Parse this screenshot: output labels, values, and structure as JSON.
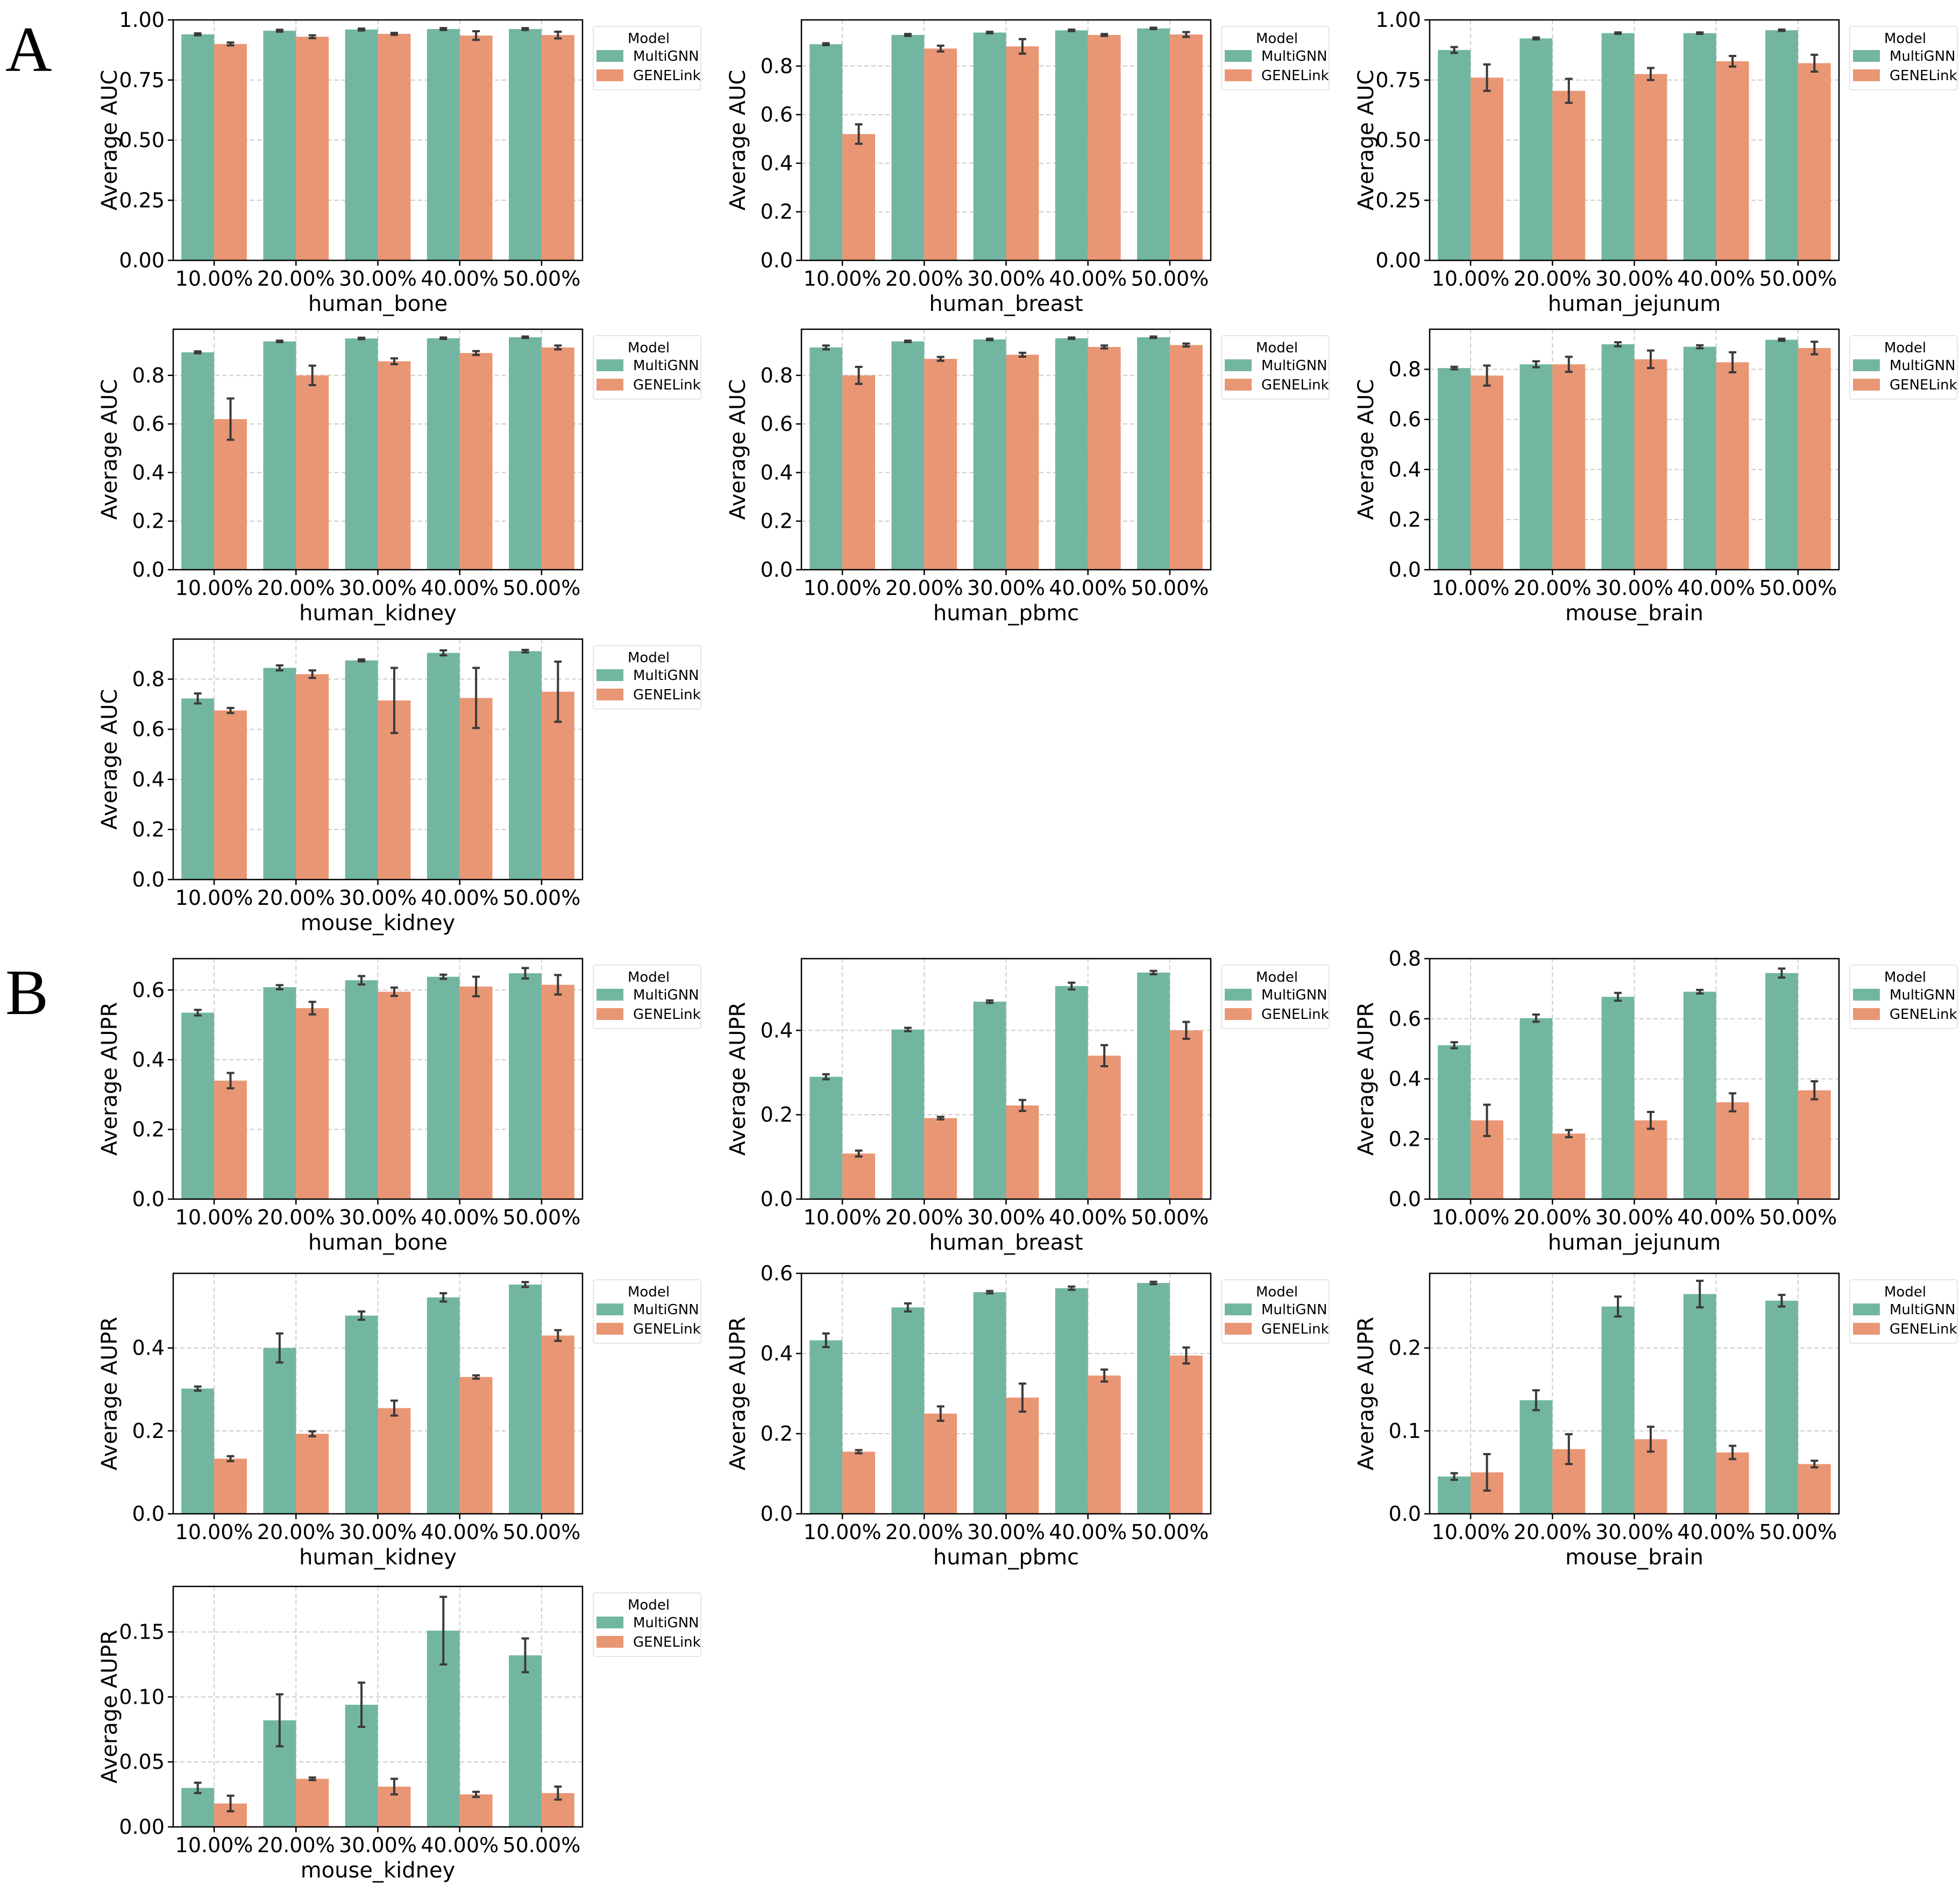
{
  "figure": {
    "panel_labels": [
      "A",
      "B"
    ]
  },
  "colors": {
    "MultiGNN": "#72b6a1",
    "GENELink": "#e99675",
    "errorbar": "#3a3a3a",
    "grid": "#cccccc",
    "axis": "#000000",
    "legend_border": "#e6e6e6"
  },
  "chart_data": [
    {
      "id": "A1",
      "type": "bar",
      "xlabel": "human_bone",
      "ylabel": "Average AUC",
      "categories": [
        "10.00%",
        "20.00%",
        "30.00%",
        "40.00%",
        "50.00%"
      ],
      "ylim": [
        0,
        1.0
      ],
      "yticks": [
        0.0,
        0.25,
        0.5,
        0.75,
        1.0
      ],
      "ytick_labels": [
        "0.00",
        "0.25",
        "0.50",
        "0.75",
        "1.00"
      ],
      "legend": {
        "title": "Model",
        "entries": [
          "MultiGNN",
          "GENELink"
        ]
      },
      "series": [
        {
          "name": "MultiGNN",
          "values": [
            0.94,
            0.955,
            0.96,
            0.962,
            0.962
          ],
          "errors": [
            0.004,
            0.004,
            0.004,
            0.004,
            0.004
          ]
        },
        {
          "name": "GENELink",
          "values": [
            0.9,
            0.93,
            0.942,
            0.935,
            0.937
          ],
          "errors": [
            0.006,
            0.006,
            0.004,
            0.018,
            0.014
          ]
        }
      ]
    },
    {
      "id": "A2",
      "type": "bar",
      "xlabel": "human_breast",
      "ylabel": "Average AUC",
      "categories": [
        "10.00%",
        "20.00%",
        "30.00%",
        "40.00%",
        "50.00%"
      ],
      "ylim": [
        0,
        0.99
      ],
      "yticks": [
        0.0,
        0.2,
        0.4,
        0.6,
        0.8
      ],
      "ytick_labels": [
        "0.0",
        "0.2",
        "0.4",
        "0.6",
        "0.8"
      ],
      "legend": {
        "title": "Model",
        "entries": [
          "MultiGNN",
          "GENELink"
        ]
      },
      "series": [
        {
          "name": "MultiGNN",
          "values": [
            0.89,
            0.928,
            0.938,
            0.947,
            0.955
          ],
          "errors": [
            0.004,
            0.004,
            0.003,
            0.003,
            0.003
          ]
        },
        {
          "name": "GENELink",
          "values": [
            0.52,
            0.872,
            0.881,
            0.928,
            0.93
          ],
          "errors": [
            0.04,
            0.012,
            0.03,
            0.004,
            0.01
          ]
        }
      ]
    },
    {
      "id": "A3",
      "type": "bar",
      "xlabel": "human_jejunum",
      "ylabel": "Average AUC",
      "categories": [
        "10.00%",
        "20.00%",
        "30.00%",
        "40.00%",
        "50.00%"
      ],
      "ylim": [
        0,
        1.0
      ],
      "yticks": [
        0.0,
        0.25,
        0.5,
        0.75,
        1.0
      ],
      "ytick_labels": [
        "0.00",
        "0.25",
        "0.50",
        "0.75",
        "1.00"
      ],
      "legend": {
        "title": "Model",
        "entries": [
          "MultiGNN",
          "GENELink"
        ]
      },
      "series": [
        {
          "name": "MultiGNN",
          "values": [
            0.875,
            0.923,
            0.945,
            0.945,
            0.957
          ],
          "errors": [
            0.012,
            0.004,
            0.003,
            0.003,
            0.003
          ]
        },
        {
          "name": "GENELink",
          "values": [
            0.76,
            0.705,
            0.775,
            0.828,
            0.82
          ],
          "errors": [
            0.055,
            0.05,
            0.025,
            0.022,
            0.035
          ]
        }
      ]
    },
    {
      "id": "A4",
      "type": "bar",
      "xlabel": "human_kidney",
      "ylabel": "Average AUC",
      "categories": [
        "10.00%",
        "20.00%",
        "30.00%",
        "40.00%",
        "50.00%"
      ],
      "ylim": [
        0,
        0.99
      ],
      "yticks": [
        0.0,
        0.2,
        0.4,
        0.6,
        0.8
      ],
      "ytick_labels": [
        "0.0",
        "0.2",
        "0.4",
        "0.6",
        "0.8"
      ],
      "legend": {
        "title": "Model",
        "entries": [
          "MultiGNN",
          "GENELink"
        ]
      },
      "series": [
        {
          "name": "MultiGNN",
          "values": [
            0.895,
            0.94,
            0.952,
            0.953,
            0.957
          ],
          "errors": [
            0.004,
            0.003,
            0.003,
            0.003,
            0.003
          ]
        },
        {
          "name": "GENELink",
          "values": [
            0.62,
            0.8,
            0.858,
            0.892,
            0.915
          ],
          "errors": [
            0.085,
            0.04,
            0.012,
            0.008,
            0.008
          ]
        }
      ]
    },
    {
      "id": "A5",
      "type": "bar",
      "xlabel": "human_pbmc",
      "ylabel": "Average AUC",
      "categories": [
        "10.00%",
        "20.00%",
        "30.00%",
        "40.00%",
        "50.00%"
      ],
      "ylim": [
        0,
        0.99
      ],
      "yticks": [
        0.0,
        0.2,
        0.4,
        0.6,
        0.8
      ],
      "ytick_labels": [
        "0.0",
        "0.2",
        "0.4",
        "0.6",
        "0.8"
      ],
      "legend": {
        "title": "Model",
        "entries": [
          "MultiGNN",
          "GENELink"
        ]
      },
      "series": [
        {
          "name": "MultiGNN",
          "values": [
            0.915,
            0.94,
            0.948,
            0.953,
            0.957
          ],
          "errors": [
            0.008,
            0.003,
            0.003,
            0.003,
            0.003
          ]
        },
        {
          "name": "GENELink",
          "values": [
            0.8,
            0.868,
            0.885,
            0.917,
            0.925
          ],
          "errors": [
            0.035,
            0.008,
            0.008,
            0.006,
            0.006
          ]
        }
      ]
    },
    {
      "id": "A6",
      "type": "bar",
      "xlabel": "mouse_brain",
      "ylabel": "Average AUC",
      "categories": [
        "10.00%",
        "20.00%",
        "30.00%",
        "40.00%",
        "50.00%"
      ],
      "ylim": [
        0,
        0.96
      ],
      "yticks": [
        0.0,
        0.2,
        0.4,
        0.6,
        0.8
      ],
      "ytick_labels": [
        "0.0",
        "0.2",
        "0.4",
        "0.6",
        "0.8"
      ],
      "legend": {
        "title": "Model",
        "entries": [
          "MultiGNN",
          "GENELink"
        ]
      },
      "series": [
        {
          "name": "MultiGNN",
          "values": [
            0.805,
            0.82,
            0.9,
            0.89,
            0.918
          ],
          "errors": [
            0.005,
            0.012,
            0.008,
            0.006,
            0.004
          ]
        },
        {
          "name": "GENELink",
          "values": [
            0.775,
            0.82,
            0.84,
            0.828,
            0.885
          ],
          "errors": [
            0.04,
            0.03,
            0.035,
            0.04,
            0.025
          ]
        }
      ]
    },
    {
      "id": "A7",
      "type": "bar",
      "xlabel": "mouse_kidney",
      "ylabel": "Average AUC",
      "categories": [
        "10.00%",
        "20.00%",
        "30.00%",
        "40.00%",
        "50.00%"
      ],
      "ylim": [
        0,
        0.96
      ],
      "yticks": [
        0.0,
        0.2,
        0.4,
        0.6,
        0.8
      ],
      "ytick_labels": [
        "0.0",
        "0.2",
        "0.4",
        "0.6",
        "0.8"
      ],
      "legend": {
        "title": "Model",
        "entries": [
          "MultiGNN",
          "GENELink"
        ]
      },
      "series": [
        {
          "name": "MultiGNN",
          "values": [
            0.723,
            0.845,
            0.875,
            0.905,
            0.912
          ],
          "errors": [
            0.02,
            0.01,
            0.004,
            0.01,
            0.005
          ]
        },
        {
          "name": "GENELink",
          "values": [
            0.675,
            0.82,
            0.715,
            0.725,
            0.75
          ],
          "errors": [
            0.01,
            0.015,
            0.13,
            0.12,
            0.12
          ]
        }
      ]
    },
    {
      "id": "B1",
      "type": "bar",
      "xlabel": "human_bone",
      "ylabel": "Average AUPR",
      "categories": [
        "10.00%",
        "20.00%",
        "30.00%",
        "40.00%",
        "50.00%"
      ],
      "ylim": [
        0,
        0.69
      ],
      "yticks": [
        0.0,
        0.2,
        0.4,
        0.6
      ],
      "ytick_labels": [
        "0.0",
        "0.2",
        "0.4",
        "0.6"
      ],
      "legend": {
        "title": "Model",
        "entries": [
          "MultiGNN",
          "GENELink"
        ]
      },
      "series": [
        {
          "name": "MultiGNN",
          "values": [
            0.535,
            0.608,
            0.628,
            0.638,
            0.648
          ],
          "errors": [
            0.008,
            0.006,
            0.012,
            0.006,
            0.015
          ]
        },
        {
          "name": "GENELink",
          "values": [
            0.34,
            0.548,
            0.595,
            0.61,
            0.615
          ],
          "errors": [
            0.022,
            0.018,
            0.012,
            0.028,
            0.028
          ]
        }
      ]
    },
    {
      "id": "B2",
      "type": "bar",
      "xlabel": "human_breast",
      "ylabel": "Average AUPR",
      "categories": [
        "10.00%",
        "20.00%",
        "30.00%",
        "40.00%",
        "50.00%"
      ],
      "ylim": [
        0,
        0.57
      ],
      "yticks": [
        0.0,
        0.2,
        0.4
      ],
      "ytick_labels": [
        "0.0",
        "0.2",
        "0.4"
      ],
      "legend": {
        "title": "Model",
        "entries": [
          "MultiGNN",
          "GENELink"
        ]
      },
      "series": [
        {
          "name": "MultiGNN",
          "values": [
            0.29,
            0.402,
            0.468,
            0.505,
            0.537
          ],
          "errors": [
            0.006,
            0.004,
            0.003,
            0.008,
            0.004
          ]
        },
        {
          "name": "GENELink",
          "values": [
            0.108,
            0.192,
            0.222,
            0.34,
            0.4
          ],
          "errors": [
            0.007,
            0.003,
            0.013,
            0.025,
            0.02
          ]
        }
      ]
    },
    {
      "id": "B3",
      "type": "bar",
      "xlabel": "human_jejunum",
      "ylabel": "Average AUPR",
      "categories": [
        "10.00%",
        "20.00%",
        "30.00%",
        "40.00%",
        "50.00%"
      ],
      "ylim": [
        0,
        0.8
      ],
      "yticks": [
        0.0,
        0.2,
        0.4,
        0.6,
        0.8
      ],
      "ytick_labels": [
        "0.0",
        "0.2",
        "0.4",
        "0.6",
        "0.8"
      ],
      "legend": {
        "title": "Model",
        "entries": [
          "MultiGNN",
          "GENELink"
        ]
      },
      "series": [
        {
          "name": "MultiGNN",
          "values": [
            0.512,
            0.602,
            0.673,
            0.69,
            0.752
          ],
          "errors": [
            0.01,
            0.012,
            0.013,
            0.006,
            0.015
          ]
        },
        {
          "name": "GENELink",
          "values": [
            0.262,
            0.218,
            0.262,
            0.322,
            0.362
          ],
          "errors": [
            0.052,
            0.012,
            0.028,
            0.03,
            0.03
          ]
        }
      ]
    },
    {
      "id": "B4",
      "type": "bar",
      "xlabel": "human_kidney",
      "ylabel": "Average AUPR",
      "categories": [
        "10.00%",
        "20.00%",
        "30.00%",
        "40.00%",
        "50.00%"
      ],
      "ylim": [
        0,
        0.58
      ],
      "yticks": [
        0.0,
        0.2,
        0.4
      ],
      "ytick_labels": [
        "0.0",
        "0.2",
        "0.4"
      ],
      "legend": {
        "title": "Model",
        "entries": [
          "MultiGNN",
          "GENELink"
        ]
      },
      "series": [
        {
          "name": "MultiGNN",
          "values": [
            0.302,
            0.4,
            0.478,
            0.522,
            0.553
          ],
          "errors": [
            0.005,
            0.035,
            0.01,
            0.01,
            0.006
          ]
        },
        {
          "name": "GENELink",
          "values": [
            0.133,
            0.193,
            0.255,
            0.33,
            0.43
          ],
          "errors": [
            0.006,
            0.006,
            0.018,
            0.004,
            0.013
          ]
        }
      ]
    },
    {
      "id": "B5",
      "type": "bar",
      "xlabel": "human_pbmc",
      "ylabel": "Average AUPR",
      "categories": [
        "10.00%",
        "20.00%",
        "30.00%",
        "40.00%",
        "50.00%"
      ],
      "ylim": [
        0,
        0.6
      ],
      "yticks": [
        0.0,
        0.2,
        0.4,
        0.6
      ],
      "ytick_labels": [
        "0.0",
        "0.2",
        "0.4",
        "0.6"
      ],
      "legend": {
        "title": "Model",
        "entries": [
          "MultiGNN",
          "GENELink"
        ]
      },
      "series": [
        {
          "name": "MultiGNN",
          "values": [
            0.433,
            0.515,
            0.553,
            0.563,
            0.576
          ],
          "errors": [
            0.017,
            0.01,
            0.003,
            0.004,
            0.003
          ]
        },
        {
          "name": "GENELink",
          "values": [
            0.155,
            0.25,
            0.29,
            0.345,
            0.395
          ],
          "errors": [
            0.004,
            0.018,
            0.035,
            0.015,
            0.02
          ]
        }
      ]
    },
    {
      "id": "B6",
      "type": "bar",
      "xlabel": "mouse_brain",
      "ylabel": "Average AUPR",
      "categories": [
        "10.00%",
        "20.00%",
        "30.00%",
        "40.00%",
        "50.00%"
      ],
      "ylim": [
        0,
        0.29
      ],
      "yticks": [
        0.0,
        0.1,
        0.2
      ],
      "ytick_labels": [
        "0.0",
        "0.1",
        "0.2"
      ],
      "legend": {
        "title": "Model",
        "entries": [
          "MultiGNN",
          "GENELink"
        ]
      },
      "series": [
        {
          "name": "MultiGNN",
          "values": [
            0.045,
            0.137,
            0.25,
            0.265,
            0.257
          ],
          "errors": [
            0.004,
            0.012,
            0.012,
            0.016,
            0.007
          ]
        },
        {
          "name": "GENELink",
          "values": [
            0.05,
            0.078,
            0.09,
            0.074,
            0.06
          ],
          "errors": [
            0.022,
            0.018,
            0.015,
            0.008,
            0.004
          ]
        }
      ]
    },
    {
      "id": "B7",
      "type": "bar",
      "xlabel": "mouse_kidney",
      "ylabel": "Average AUPR",
      "categories": [
        "10.00%",
        "20.00%",
        "30.00%",
        "40.00%",
        "50.00%"
      ],
      "ylim": [
        0,
        0.185
      ],
      "yticks": [
        0.0,
        0.05,
        0.1,
        0.15
      ],
      "ytick_labels": [
        "0.00",
        "0.05",
        "0.10",
        "0.15"
      ],
      "legend": {
        "title": "Model",
        "entries": [
          "MultiGNN",
          "GENELink"
        ]
      },
      "series": [
        {
          "name": "MultiGNN",
          "values": [
            0.03,
            0.082,
            0.094,
            0.151,
            0.132
          ],
          "errors": [
            0.004,
            0.02,
            0.017,
            0.026,
            0.013
          ]
        },
        {
          "name": "GENELink",
          "values": [
            0.018,
            0.037,
            0.031,
            0.025,
            0.026
          ],
          "errors": [
            0.006,
            0.001,
            0.006,
            0.002,
            0.005
          ]
        }
      ]
    }
  ]
}
